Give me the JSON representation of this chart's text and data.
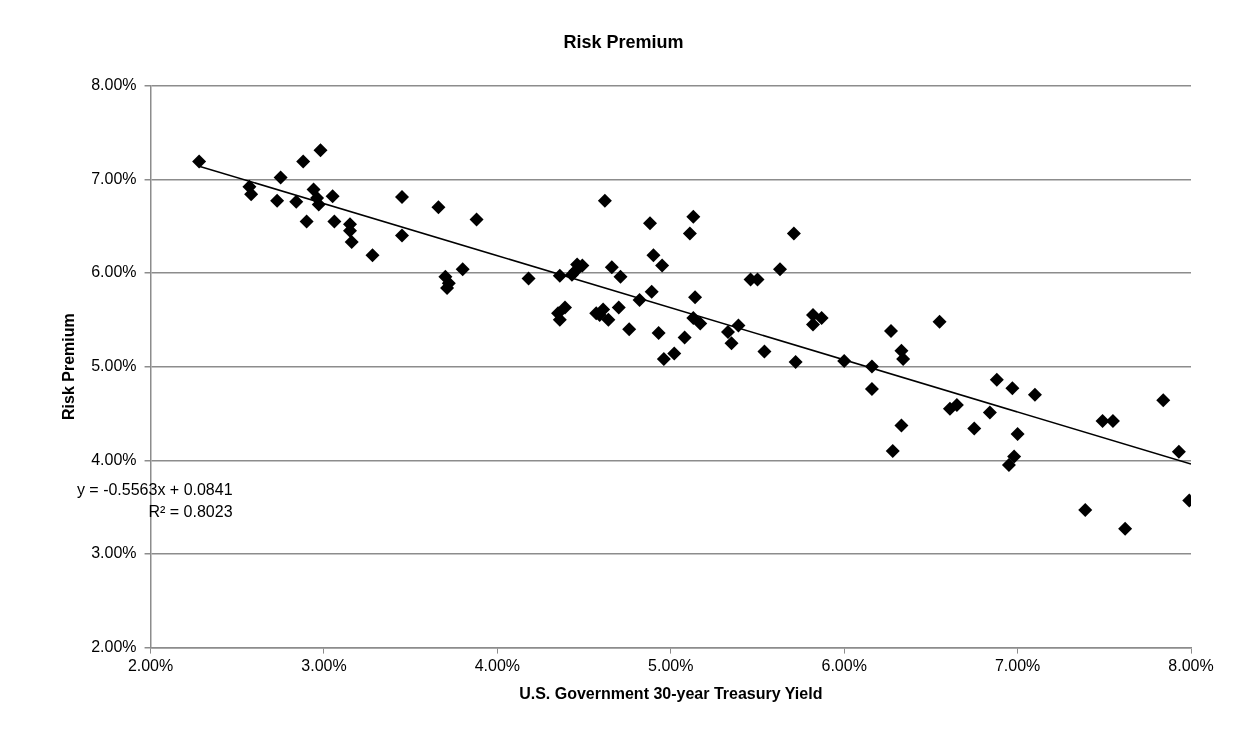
{
  "chart_data": {
    "type": "scatter",
    "title": "Risk Premium",
    "xlabel": "U.S. Government 30-year Treasury Yield",
    "ylabel": "Risk Premium",
    "xlim": [
      0.02,
      0.08
    ],
    "xticks": [
      {
        "value": 0.02,
        "label": "2.00%"
      },
      {
        "value": 0.03,
        "label": "3.00%"
      },
      {
        "value": 0.04,
        "label": "4.00%"
      },
      {
        "value": 0.05,
        "label": "5.00%"
      },
      {
        "value": 0.06,
        "label": "6.00%"
      },
      {
        "value": 0.07,
        "label": "7.00%"
      },
      {
        "value": 0.08,
        "label": "8.00%"
      }
    ],
    "ylim": [
      0.02,
      0.08
    ],
    "yticks": [
      {
        "value": 0.02,
        "label": "2.00%"
      },
      {
        "value": 0.03,
        "label": "3.00%"
      },
      {
        "value": 0.04,
        "label": "4.00%"
      },
      {
        "value": 0.05,
        "label": "5.00%"
      },
      {
        "value": 0.06,
        "label": "6.00%"
      },
      {
        "value": 0.07,
        "label": "7.00%"
      },
      {
        "value": 0.08,
        "label": "8.00%"
      }
    ],
    "grid": "y",
    "legend": false,
    "annotations": [
      "y = -0.5563x + 0.0841",
      "R² = 0.8023"
    ],
    "series": [
      {
        "marker": "diamond",
        "color": "#000000",
        "x": [
          0.0228,
          0.0257,
          0.0258,
          0.0275,
          0.0273,
          0.0288,
          0.0284,
          0.0298,
          0.0294,
          0.0305,
          0.0297,
          0.0296,
          0.029,
          0.0306,
          0.0315,
          0.0315,
          0.0316,
          0.0328,
          0.0345,
          0.0345,
          0.0366,
          0.0388,
          0.037,
          0.038,
          0.0371,
          0.0372,
          0.0418,
          0.0436,
          0.0443,
          0.0446,
          0.0449,
          0.0445,
          0.0435,
          0.0439,
          0.0436,
          0.0457,
          0.0461,
          0.0464,
          0.047,
          0.0459,
          0.0476,
          0.0466,
          0.0471,
          0.0482,
          0.0489,
          0.0488,
          0.049,
          0.0495,
          0.0511,
          0.0514,
          0.0513,
          0.0517,
          0.0493,
          0.0508,
          0.0496,
          0.0502,
          0.0533,
          0.0539,
          0.0535,
          0.0554,
          0.0546,
          0.055,
          0.0462,
          0.0513,
          0.0571,
          0.0563,
          0.0582,
          0.0587,
          0.0582,
          0.0572,
          0.06,
          0.0616,
          0.0616,
          0.0627,
          0.0633,
          0.0634,
          0.0655,
          0.0688,
          0.0697,
          0.071,
          0.0661,
          0.0665,
          0.0684,
          0.0749,
          0.0755,
          0.0784,
          0.0633,
          0.0628,
          0.0675,
          0.07,
          0.0698,
          0.0695,
          0.0793,
          0.0799,
          0.0739,
          0.0762
        ],
        "values": [
          0.0719,
          0.0692,
          0.0684,
          0.0702,
          0.0677,
          0.0719,
          0.0676,
          0.0731,
          0.0689,
          0.0682,
          0.0673,
          0.068,
          0.0655,
          0.0655,
          0.0652,
          0.0645,
          0.0633,
          0.0619,
          0.0681,
          0.064,
          0.067,
          0.0657,
          0.0596,
          0.0604,
          0.0584,
          0.0589,
          0.0594,
          0.0597,
          0.0598,
          0.0609,
          0.0608,
          0.0602,
          0.0557,
          0.0563,
          0.055,
          0.0557,
          0.0561,
          0.055,
          0.0563,
          0.0555,
          0.054,
          0.0606,
          0.0596,
          0.0571,
          0.058,
          0.0653,
          0.0619,
          0.0608,
          0.0642,
          0.0574,
          0.0552,
          0.0546,
          0.0536,
          0.0531,
          0.0508,
          0.0514,
          0.0537,
          0.0544,
          0.0525,
          0.0516,
          0.0593,
          0.0593,
          0.0677,
          0.066,
          0.0642,
          0.0604,
          0.0555,
          0.0552,
          0.0545,
          0.0505,
          0.0506,
          0.05,
          0.0476,
          0.0538,
          0.0517,
          0.0508,
          0.0548,
          0.0486,
          0.0477,
          0.047,
          0.0455,
          0.0459,
          0.0451,
          0.0442,
          0.0442,
          0.0464,
          0.0437,
          0.041,
          0.0434,
          0.0428,
          0.0404,
          0.0395,
          0.0409,
          0.0357,
          0.0347,
          0.0327
        ]
      },
      {
        "type": "line",
        "marker": "none",
        "color": "#000000",
        "x": [
          0.0228,
          0.08
        ],
        "values": [
          0.0714,
          0.0396
        ]
      }
    ]
  }
}
